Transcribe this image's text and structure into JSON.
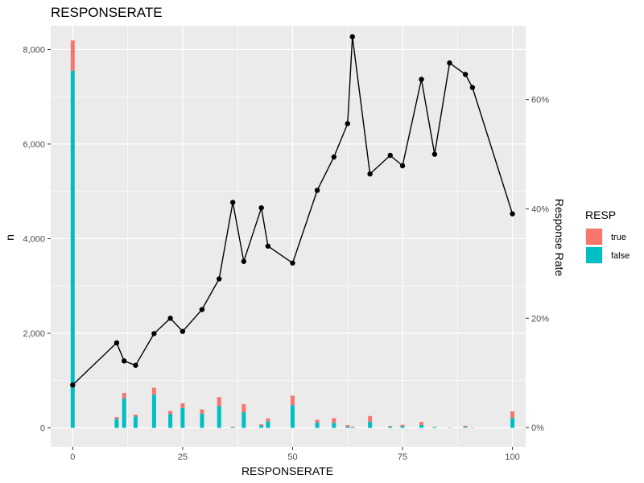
{
  "chart_data": {
    "type": "bar+line",
    "title": "RESPONSERATE",
    "xlabel": "RESPONSERATE",
    "ylabel": "n",
    "y2label": "Response Rate",
    "xlim": [
      -5,
      103
    ],
    "ylim": [
      -400,
      8500
    ],
    "y2lim": [
      -3.5,
      73.5
    ],
    "x_ticks": [
      0,
      25,
      50,
      75,
      100
    ],
    "x_tick_labels": [
      "0",
      "25",
      "50",
      "75",
      "100"
    ],
    "y_ticks": [
      0,
      2000,
      4000,
      6000,
      8000
    ],
    "y_tick_labels": [
      "0",
      "2,000",
      "4,000",
      "6,000",
      "8,000"
    ],
    "y2_ticks": [
      0,
      20,
      40,
      60
    ],
    "y2_tick_labels": [
      "0%",
      "20%",
      "40%",
      "60%"
    ],
    "grid": true,
    "legend": {
      "title": "RESP",
      "position": "right",
      "entries": [
        {
          "label": "true",
          "color": "#F8766D"
        },
        {
          "label": "false",
          "color": "#00BFC4"
        }
      ]
    },
    "bars": {
      "x": [
        0,
        10,
        11.7,
        14.3,
        18.5,
        22.2,
        25,
        29.4,
        33.3,
        36.4,
        38.9,
        42.9,
        44.4,
        50,
        55.6,
        59.4,
        62.5,
        63.6,
        67.6,
        72.2,
        75,
        79.3,
        82.3,
        85.7,
        89.3,
        90.9,
        100
      ],
      "series": [
        {
          "name": "false",
          "values": [
            7550,
            190,
            620,
            240,
            700,
            290,
            420,
            300,
            460,
            15,
            330,
            50,
            140,
            480,
            110,
            105,
            30,
            12,
            130,
            25,
            35,
            60,
            15,
            5,
            20,
            5,
            210
          ]
        },
        {
          "name": "true",
          "values": [
            640,
            40,
            120,
            40,
            150,
            70,
            100,
            90,
            190,
            10,
            170,
            25,
            60,
            200,
            60,
            100,
            30,
            15,
            120,
            15,
            30,
            65,
            5,
            5,
            25,
            5,
            140
          ]
        }
      ]
    },
    "line": {
      "name": "Response Rate",
      "x": [
        0,
        10,
        11.7,
        14.3,
        18.5,
        22.2,
        25,
        29.4,
        33.3,
        36.4,
        38.9,
        42.9,
        44.4,
        50,
        55.6,
        59.4,
        62.5,
        63.6,
        67.6,
        72.2,
        75,
        79.3,
        82.3,
        85.7,
        89.3,
        90.9,
        100
      ],
      "values": [
        7.8,
        15.5,
        12.2,
        11.4,
        17.2,
        20.0,
        17.6,
        21.6,
        27.2,
        41.2,
        30.4,
        40.2,
        33.2,
        30.1,
        43.4,
        49.5,
        55.6,
        71.5,
        46.4,
        49.8,
        47.9,
        63.7,
        50.0,
        66.7,
        64.6,
        62.2,
        39.1
      ]
    }
  }
}
